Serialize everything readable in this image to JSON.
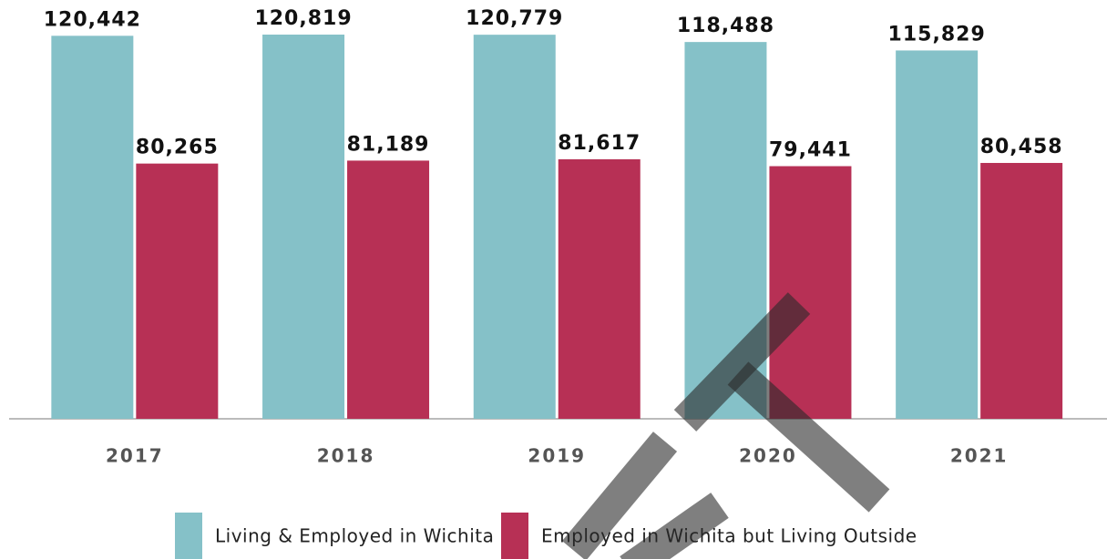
{
  "chart_data": {
    "type": "bar",
    "categories": [
      "2017",
      "2018",
      "2019",
      "2020",
      "2021"
    ],
    "series": [
      {
        "name": "Living & Employed in Wichita",
        "color": "#85c1c8",
        "values": [
          120442,
          120819,
          120779,
          118488,
          115829
        ],
        "value_labels": [
          "120,442",
          "120,819",
          "120,779",
          "118,488",
          "115,829"
        ]
      },
      {
        "name": "Employed in Wichita but Living Outside",
        "color": "#b73055",
        "values": [
          80265,
          81189,
          81617,
          79441,
          80458
        ],
        "value_labels": [
          "80,265",
          "81,189",
          "81,617",
          "79,441",
          "80,458"
        ]
      }
    ],
    "legend": "bottom"
  }
}
